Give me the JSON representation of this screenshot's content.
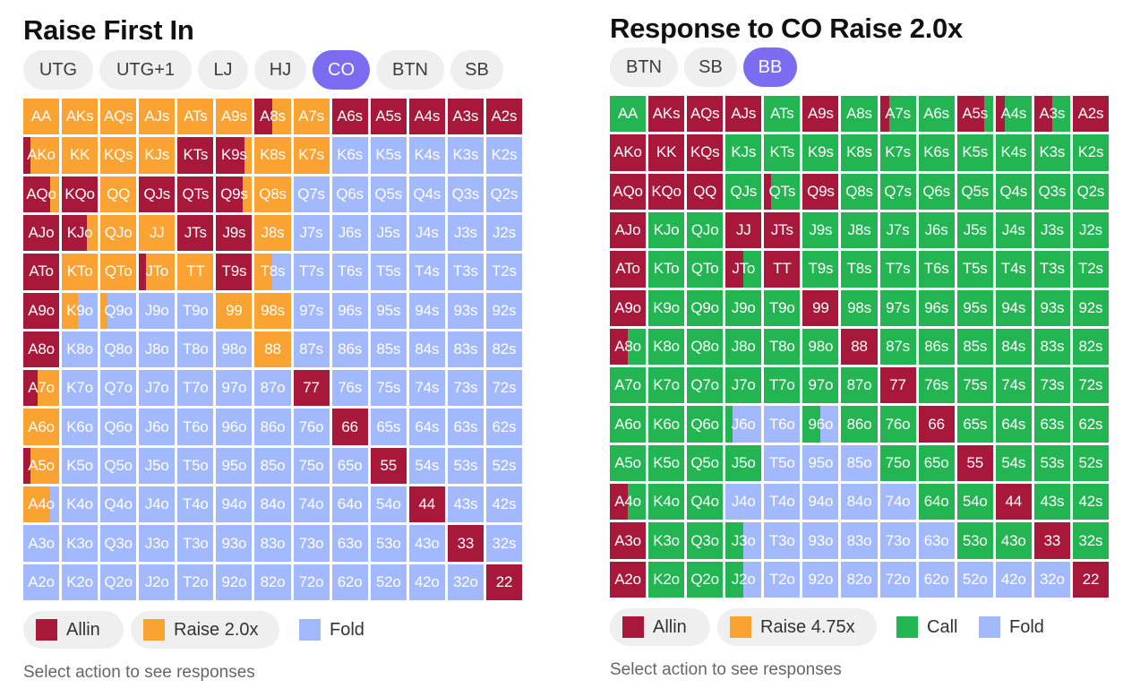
{
  "colors": {
    "allin": "#a8183a",
    "raise": "#fba332",
    "call": "#22b552",
    "fold": "#a3b9fd",
    "tab_active": "#7b6cf2",
    "tab": "#efefef"
  },
  "left": {
    "title": "Raise First In",
    "tabs": [
      {
        "label": "UTG",
        "active": false
      },
      {
        "label": "UTG+1",
        "active": false
      },
      {
        "label": "LJ",
        "active": false
      },
      {
        "label": "HJ",
        "active": false
      },
      {
        "label": "CO",
        "active": true
      },
      {
        "label": "BTN",
        "active": false
      },
      {
        "label": "SB",
        "active": false
      }
    ],
    "legend": [
      {
        "label": "Allin",
        "color": "allin",
        "pill": true
      },
      {
        "label": "Raise 2.0x",
        "color": "raise",
        "pill": true
      },
      {
        "label": "Fold",
        "color": "fold",
        "pill": false
      }
    ],
    "hint": "Select action to see responses",
    "grid": [
      [
        [
          "AA",
          "R"
        ],
        [
          "AKs",
          "R"
        ],
        [
          "AQs",
          "R"
        ],
        [
          "AJs",
          "R"
        ],
        [
          "ATs",
          "R"
        ],
        [
          "A9s",
          "R"
        ],
        [
          "A8s",
          "A0.5R0.5"
        ],
        [
          "A7s",
          "R"
        ],
        [
          "A6s",
          "A"
        ],
        [
          "A5s",
          "A"
        ],
        [
          "A4s",
          "A"
        ],
        [
          "A3s",
          "A"
        ],
        [
          "A2s",
          "A"
        ]
      ],
      [
        [
          "AKo",
          "A0.2R0.8"
        ],
        [
          "KK",
          "R"
        ],
        [
          "KQs",
          "R"
        ],
        [
          "KJs",
          "R"
        ],
        [
          "KTs",
          "A"
        ],
        [
          "K9s",
          "A0.8R0.2"
        ],
        [
          "K8s",
          "R"
        ],
        [
          "K7s",
          "R"
        ],
        [
          "K6s",
          "F"
        ],
        [
          "K5s",
          "F"
        ],
        [
          "K4s",
          "F"
        ],
        [
          "K3s",
          "F"
        ],
        [
          "K2s",
          "F"
        ]
      ],
      [
        [
          "AQo",
          "A0.75R0.25"
        ],
        [
          "KQo",
          "A"
        ],
        [
          "QQ",
          "R"
        ],
        [
          "QJs",
          "A"
        ],
        [
          "QTs",
          "A"
        ],
        [
          "Q9s",
          "A0.75R0.25"
        ],
        [
          "Q8s",
          "R"
        ],
        [
          "Q7s",
          "F"
        ],
        [
          "Q6s",
          "F"
        ],
        [
          "Q5s",
          "F"
        ],
        [
          "Q4s",
          "F"
        ],
        [
          "Q3s",
          "F"
        ],
        [
          "Q2s",
          "F"
        ]
      ],
      [
        [
          "AJo",
          "A"
        ],
        [
          "KJo",
          "A0.7R0.3"
        ],
        [
          "QJo",
          "R"
        ],
        [
          "JJ",
          "R"
        ],
        [
          "JTs",
          "A"
        ],
        [
          "J9s",
          "A"
        ],
        [
          "J8s",
          "R"
        ],
        [
          "J7s",
          "F"
        ],
        [
          "J6s",
          "F"
        ],
        [
          "J5s",
          "F"
        ],
        [
          "J4s",
          "F"
        ],
        [
          "J3s",
          "F"
        ],
        [
          "J2s",
          "F"
        ]
      ],
      [
        [
          "ATo",
          "A"
        ],
        [
          "KTo",
          "R"
        ],
        [
          "QTo",
          "R"
        ],
        [
          "JTo",
          "A0.2R0.8"
        ],
        [
          "TT",
          "R"
        ],
        [
          "T9s",
          "A"
        ],
        [
          "T8s",
          "R0.5F0.5"
        ],
        [
          "T7s",
          "F"
        ],
        [
          "T6s",
          "F"
        ],
        [
          "T5s",
          "F"
        ],
        [
          "T4s",
          "F"
        ],
        [
          "T3s",
          "F"
        ],
        [
          "T2s",
          "F"
        ]
      ],
      [
        [
          "A9o",
          "A"
        ],
        [
          "K9o",
          "R0.45F0.55"
        ],
        [
          "Q9o",
          "R0.2F0.8"
        ],
        [
          "J9o",
          "F"
        ],
        [
          "T9o",
          "F"
        ],
        [
          "99",
          "R"
        ],
        [
          "98s",
          "R"
        ],
        [
          "97s",
          "F"
        ],
        [
          "96s",
          "F"
        ],
        [
          "95s",
          "F"
        ],
        [
          "94s",
          "F"
        ],
        [
          "93s",
          "F"
        ],
        [
          "92s",
          "F"
        ]
      ],
      [
        [
          "A8o",
          "A"
        ],
        [
          "K8o",
          "F"
        ],
        [
          "Q8o",
          "F"
        ],
        [
          "J8o",
          "F"
        ],
        [
          "T8o",
          "F"
        ],
        [
          "98o",
          "F"
        ],
        [
          "88",
          "R"
        ],
        [
          "87s",
          "F"
        ],
        [
          "86s",
          "F"
        ],
        [
          "85s",
          "F"
        ],
        [
          "84s",
          "F"
        ],
        [
          "83s",
          "F"
        ],
        [
          "82s",
          "F"
        ]
      ],
      [
        [
          "A7o",
          "A0.4R0.6"
        ],
        [
          "K7o",
          "F"
        ],
        [
          "Q7o",
          "F"
        ],
        [
          "J7o",
          "F"
        ],
        [
          "T7o",
          "F"
        ],
        [
          "97o",
          "F"
        ],
        [
          "87o",
          "F"
        ],
        [
          "77",
          "A"
        ],
        [
          "76s",
          "F"
        ],
        [
          "75s",
          "F"
        ],
        [
          "74s",
          "F"
        ],
        [
          "73s",
          "F"
        ],
        [
          "72s",
          "F"
        ]
      ],
      [
        [
          "A6o",
          "R"
        ],
        [
          "K6o",
          "F"
        ],
        [
          "Q6o",
          "F"
        ],
        [
          "J6o",
          "F"
        ],
        [
          "T6o",
          "F"
        ],
        [
          "96o",
          "F"
        ],
        [
          "86o",
          "F"
        ],
        [
          "76o",
          "F"
        ],
        [
          "66",
          "A"
        ],
        [
          "65s",
          "F"
        ],
        [
          "64s",
          "F"
        ],
        [
          "63s",
          "F"
        ],
        [
          "62s",
          "F"
        ]
      ],
      [
        [
          "A5o",
          "A0.2R0.8"
        ],
        [
          "K5o",
          "F"
        ],
        [
          "Q5o",
          "F"
        ],
        [
          "J5o",
          "F"
        ],
        [
          "T5o",
          "F"
        ],
        [
          "95o",
          "F"
        ],
        [
          "85o",
          "F"
        ],
        [
          "75o",
          "F"
        ],
        [
          "65o",
          "F"
        ],
        [
          "55",
          "A"
        ],
        [
          "54s",
          "F"
        ],
        [
          "53s",
          "F"
        ],
        [
          "52s",
          "F"
        ]
      ],
      [
        [
          "A4o",
          "R0.75F0.25"
        ],
        [
          "K4o",
          "F"
        ],
        [
          "Q4o",
          "F"
        ],
        [
          "J4o",
          "F"
        ],
        [
          "T4o",
          "F"
        ],
        [
          "94o",
          "F"
        ],
        [
          "84o",
          "F"
        ],
        [
          "74o",
          "F"
        ],
        [
          "64o",
          "F"
        ],
        [
          "54o",
          "F"
        ],
        [
          "44",
          "A"
        ],
        [
          "43s",
          "F"
        ],
        [
          "42s",
          "F"
        ]
      ],
      [
        [
          "A3o",
          "F"
        ],
        [
          "K3o",
          "F"
        ],
        [
          "Q3o",
          "F"
        ],
        [
          "J3o",
          "F"
        ],
        [
          "T3o",
          "F"
        ],
        [
          "93o",
          "F"
        ],
        [
          "83o",
          "F"
        ],
        [
          "73o",
          "F"
        ],
        [
          "63o",
          "F"
        ],
        [
          "53o",
          "F"
        ],
        [
          "43o",
          "F"
        ],
        [
          "33",
          "A"
        ],
        [
          "32s",
          "F"
        ]
      ],
      [
        [
          "A2o",
          "F"
        ],
        [
          "K2o",
          "F"
        ],
        [
          "Q2o",
          "F"
        ],
        [
          "J2o",
          "F"
        ],
        [
          "T2o",
          "F"
        ],
        [
          "92o",
          "F"
        ],
        [
          "82o",
          "F"
        ],
        [
          "72o",
          "F"
        ],
        [
          "62o",
          "F"
        ],
        [
          "52o",
          "F"
        ],
        [
          "42o",
          "F"
        ],
        [
          "32o",
          "F"
        ],
        [
          "22",
          "A"
        ]
      ]
    ]
  },
  "right": {
    "title": "Response to CO Raise 2.0x",
    "tabs": [
      {
        "label": "BTN",
        "active": false
      },
      {
        "label": "SB",
        "active": false
      },
      {
        "label": "BB",
        "active": true
      }
    ],
    "legend": [
      {
        "label": "Allin",
        "color": "allin",
        "pill": true
      },
      {
        "label": "Raise 4.75x",
        "color": "raise",
        "pill": true
      },
      {
        "label": "Call",
        "color": "call",
        "pill": false
      },
      {
        "label": "Fold",
        "color": "fold",
        "pill": false
      }
    ],
    "hint": "Select action to see responses",
    "grid": [
      [
        [
          "AA",
          "C"
        ],
        [
          "AKs",
          "A"
        ],
        [
          "AQs",
          "A"
        ],
        [
          "AJs",
          "A"
        ],
        [
          "ATs",
          "C"
        ],
        [
          "A9s",
          "A"
        ],
        [
          "A8s",
          "C"
        ],
        [
          "A7s",
          "A0.25C0.75"
        ],
        [
          "A6s",
          "C"
        ],
        [
          "A5s",
          "A0.75C0.25"
        ],
        [
          "A4s",
          "A0.25C0.75"
        ],
        [
          "A3s",
          "A0.5C0.5"
        ],
        [
          "A2s",
          "A"
        ]
      ],
      [
        [
          "AKo",
          "A"
        ],
        [
          "KK",
          "A"
        ],
        [
          "KQs",
          "A"
        ],
        [
          "KJs",
          "C"
        ],
        [
          "KTs",
          "C"
        ],
        [
          "K9s",
          "C"
        ],
        [
          "K8s",
          "C"
        ],
        [
          "K7s",
          "C"
        ],
        [
          "K6s",
          "C"
        ],
        [
          "K5s",
          "C"
        ],
        [
          "K4s",
          "C"
        ],
        [
          "K3s",
          "C"
        ],
        [
          "K2s",
          "C"
        ]
      ],
      [
        [
          "AQo",
          "A"
        ],
        [
          "KQo",
          "A"
        ],
        [
          "QQ",
          "A"
        ],
        [
          "QJs",
          "C"
        ],
        [
          "QTs",
          "A0.2C0.8"
        ],
        [
          "Q9s",
          "A"
        ],
        [
          "Q8s",
          "C"
        ],
        [
          "Q7s",
          "C"
        ],
        [
          "Q6s",
          "C"
        ],
        [
          "Q5s",
          "C"
        ],
        [
          "Q4s",
          "C"
        ],
        [
          "Q3s",
          "C"
        ],
        [
          "Q2s",
          "C"
        ]
      ],
      [
        [
          "AJo",
          "A"
        ],
        [
          "KJo",
          "C"
        ],
        [
          "QJo",
          "C"
        ],
        [
          "JJ",
          "A"
        ],
        [
          "JTs",
          "A"
        ],
        [
          "J9s",
          "C"
        ],
        [
          "J8s",
          "C"
        ],
        [
          "J7s",
          "C"
        ],
        [
          "J6s",
          "C"
        ],
        [
          "J5s",
          "C"
        ],
        [
          "J4s",
          "C"
        ],
        [
          "J3s",
          "C"
        ],
        [
          "J2s",
          "C"
        ]
      ],
      [
        [
          "ATo",
          "A"
        ],
        [
          "KTo",
          "C"
        ],
        [
          "QTo",
          "C"
        ],
        [
          "JTo",
          "A0.5C0.5"
        ],
        [
          "TT",
          "A"
        ],
        [
          "T9s",
          "C"
        ],
        [
          "T8s",
          "C"
        ],
        [
          "T7s",
          "C"
        ],
        [
          "T6s",
          "C"
        ],
        [
          "T5s",
          "C"
        ],
        [
          "T4s",
          "C"
        ],
        [
          "T3s",
          "C"
        ],
        [
          "T2s",
          "C"
        ]
      ],
      [
        [
          "A9o",
          "A"
        ],
        [
          "K9o",
          "C"
        ],
        [
          "Q9o",
          "C"
        ],
        [
          "J9o",
          "C"
        ],
        [
          "T9o",
          "C"
        ],
        [
          "99",
          "A"
        ],
        [
          "98s",
          "C"
        ],
        [
          "97s",
          "C"
        ],
        [
          "96s",
          "C"
        ],
        [
          "95s",
          "C"
        ],
        [
          "94s",
          "C"
        ],
        [
          "93s",
          "C"
        ],
        [
          "92s",
          "C"
        ]
      ],
      [
        [
          "A8o",
          "A0.5C0.5"
        ],
        [
          "K8o",
          "C"
        ],
        [
          "Q8o",
          "C"
        ],
        [
          "J8o",
          "C"
        ],
        [
          "T8o",
          "C"
        ],
        [
          "98o",
          "C"
        ],
        [
          "88",
          "A"
        ],
        [
          "87s",
          "C"
        ],
        [
          "86s",
          "C"
        ],
        [
          "85s",
          "C"
        ],
        [
          "84s",
          "C"
        ],
        [
          "83s",
          "C"
        ],
        [
          "82s",
          "C"
        ]
      ],
      [
        [
          "A7o",
          "C"
        ],
        [
          "K7o",
          "C"
        ],
        [
          "Q7o",
          "C"
        ],
        [
          "J7o",
          "C"
        ],
        [
          "T7o",
          "C"
        ],
        [
          "97o",
          "C"
        ],
        [
          "87o",
          "C"
        ],
        [
          "77",
          "A"
        ],
        [
          "76s",
          "C"
        ],
        [
          "75s",
          "C"
        ],
        [
          "74s",
          "C"
        ],
        [
          "73s",
          "C"
        ],
        [
          "72s",
          "C"
        ]
      ],
      [
        [
          "A6o",
          "C"
        ],
        [
          "K6o",
          "C"
        ],
        [
          "Q6o",
          "C"
        ],
        [
          "J6o",
          "C0.2F0.8"
        ],
        [
          "T6o",
          "F"
        ],
        [
          "96o",
          "C0.5F0.5"
        ],
        [
          "86o",
          "C"
        ],
        [
          "76o",
          "C"
        ],
        [
          "66",
          "A"
        ],
        [
          "65s",
          "C"
        ],
        [
          "64s",
          "C"
        ],
        [
          "63s",
          "C"
        ],
        [
          "62s",
          "C"
        ]
      ],
      [
        [
          "A5o",
          "C"
        ],
        [
          "K5o",
          "C"
        ],
        [
          "Q5o",
          "C"
        ],
        [
          "J5o",
          "C"
        ],
        [
          "T5o",
          "F"
        ],
        [
          "95o",
          "F"
        ],
        [
          "85o",
          "F"
        ],
        [
          "75o",
          "C"
        ],
        [
          "65o",
          "C"
        ],
        [
          "55",
          "A"
        ],
        [
          "54s",
          "C"
        ],
        [
          "53s",
          "C"
        ],
        [
          "52s",
          "C"
        ]
      ],
      [
        [
          "A4o",
          "A0.5C0.5"
        ],
        [
          "K4o",
          "C"
        ],
        [
          "Q4o",
          "C"
        ],
        [
          "J4o",
          "F"
        ],
        [
          "T4o",
          "F"
        ],
        [
          "94o",
          "F"
        ],
        [
          "84o",
          "F"
        ],
        [
          "74o",
          "F"
        ],
        [
          "64o",
          "C"
        ],
        [
          "54o",
          "C"
        ],
        [
          "44",
          "A"
        ],
        [
          "43s",
          "C"
        ],
        [
          "42s",
          "C"
        ]
      ],
      [
        [
          "A3o",
          "A"
        ],
        [
          "K3o",
          "C"
        ],
        [
          "Q3o",
          "C"
        ],
        [
          "J3o",
          "C0.5F0.5"
        ],
        [
          "T3o",
          "F"
        ],
        [
          "93o",
          "F"
        ],
        [
          "83o",
          "F"
        ],
        [
          "73o",
          "F"
        ],
        [
          "63o",
          "F"
        ],
        [
          "53o",
          "C"
        ],
        [
          "43o",
          "C"
        ],
        [
          "33",
          "A"
        ],
        [
          "32s",
          "C"
        ]
      ],
      [
        [
          "A2o",
          "A"
        ],
        [
          "K2o",
          "C"
        ],
        [
          "Q2o",
          "C"
        ],
        [
          "J2o",
          "C0.5F0.5"
        ],
        [
          "T2o",
          "F"
        ],
        [
          "92o",
          "F"
        ],
        [
          "82o",
          "F"
        ],
        [
          "72o",
          "F"
        ],
        [
          "62o",
          "F"
        ],
        [
          "52o",
          "F"
        ],
        [
          "42o",
          "F"
        ],
        [
          "32o",
          "F"
        ],
        [
          "22",
          "A"
        ]
      ]
    ]
  }
}
